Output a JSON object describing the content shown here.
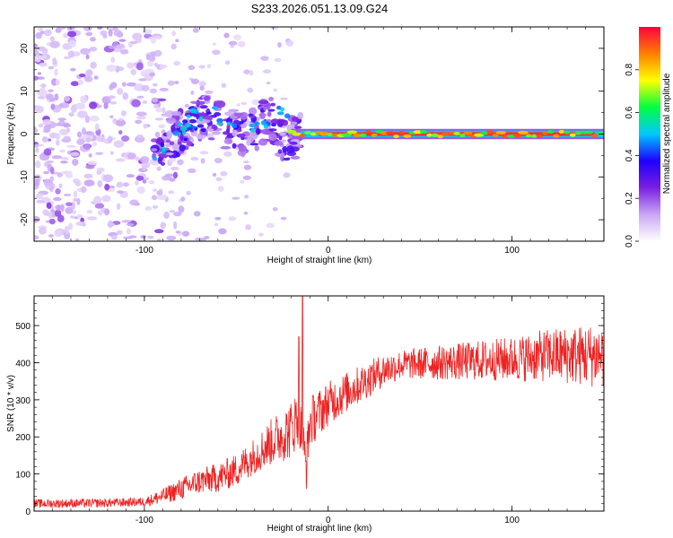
{
  "title": "S233.2026.051.13.09.G24",
  "chart_data": [
    {
      "type": "heatmap",
      "name": "spectrogram",
      "xlabel": "Height of straight line (km)",
      "ylabel": "Frequency (Hz)",
      "xlim": [
        -160,
        150
      ],
      "ylim": [
        -25,
        25
      ],
      "xticks": [
        -100,
        0,
        100
      ],
      "yticks": [
        -20,
        -10,
        0,
        10,
        20
      ],
      "colorbar": {
        "label": "Normalized spectral amplitude",
        "ticks": [
          0.0,
          0.2,
          0.4,
          0.6,
          0.8
        ],
        "range": [
          0,
          1
        ],
        "colors": [
          "#ffffff",
          "#c9a6f5",
          "#7a1fe0",
          "#1e00ff",
          "#00c8ff",
          "#00ff40",
          "#ffff00",
          "#ff7f00",
          "#ff0040"
        ]
      },
      "features": {
        "noise_region": [
          -160,
          -80
        ],
        "scatter_region": [
          -90,
          -20
        ],
        "stable_line_region": [
          -20,
          150
        ],
        "stable_line_frequency": 0
      }
    },
    {
      "type": "line",
      "name": "snr",
      "xlabel": "Height of straight line (km)",
      "ylabel": "SNR (10 * v/v)",
      "xlim": [
        -160,
        150
      ],
      "ylim": [
        0,
        580
      ],
      "xticks": [
        -100,
        0,
        100
      ],
      "yticks": [
        0,
        100,
        200,
        300,
        400,
        500
      ],
      "color": "#ee2222",
      "trend": [
        {
          "x": -160,
          "y": 20
        },
        {
          "x": -120,
          "y": 22
        },
        {
          "x": -100,
          "y": 25
        },
        {
          "x": -90,
          "y": 40
        },
        {
          "x": -80,
          "y": 60
        },
        {
          "x": -70,
          "y": 80
        },
        {
          "x": -60,
          "y": 90
        },
        {
          "x": -50,
          "y": 110
        },
        {
          "x": -40,
          "y": 150
        },
        {
          "x": -30,
          "y": 190
        },
        {
          "x": -20,
          "y": 220
        },
        {
          "x": -16,
          "y": 260
        },
        {
          "x": -12,
          "y": 120
        },
        {
          "x": -10,
          "y": 240
        },
        {
          "x": 0,
          "y": 290
        },
        {
          "x": 10,
          "y": 320
        },
        {
          "x": 20,
          "y": 350
        },
        {
          "x": 30,
          "y": 380
        },
        {
          "x": 40,
          "y": 395
        },
        {
          "x": 60,
          "y": 400
        },
        {
          "x": 80,
          "y": 405
        },
        {
          "x": 100,
          "y": 410
        },
        {
          "x": 120,
          "y": 420
        },
        {
          "x": 140,
          "y": 420
        },
        {
          "x": 150,
          "y": 420
        }
      ],
      "spikes": [
        {
          "x": -14,
          "y": 578
        },
        {
          "x": -16,
          "y": 470
        }
      ],
      "noise_amplitude": [
        {
          "x": -160,
          "a": 12
        },
        {
          "x": -100,
          "a": 12
        },
        {
          "x": -80,
          "a": 30
        },
        {
          "x": -40,
          "a": 50
        },
        {
          "x": -20,
          "a": 80
        },
        {
          "x": 0,
          "a": 60
        },
        {
          "x": 40,
          "a": 40
        },
        {
          "x": 100,
          "a": 60
        },
        {
          "x": 150,
          "a": 90
        }
      ]
    }
  ]
}
